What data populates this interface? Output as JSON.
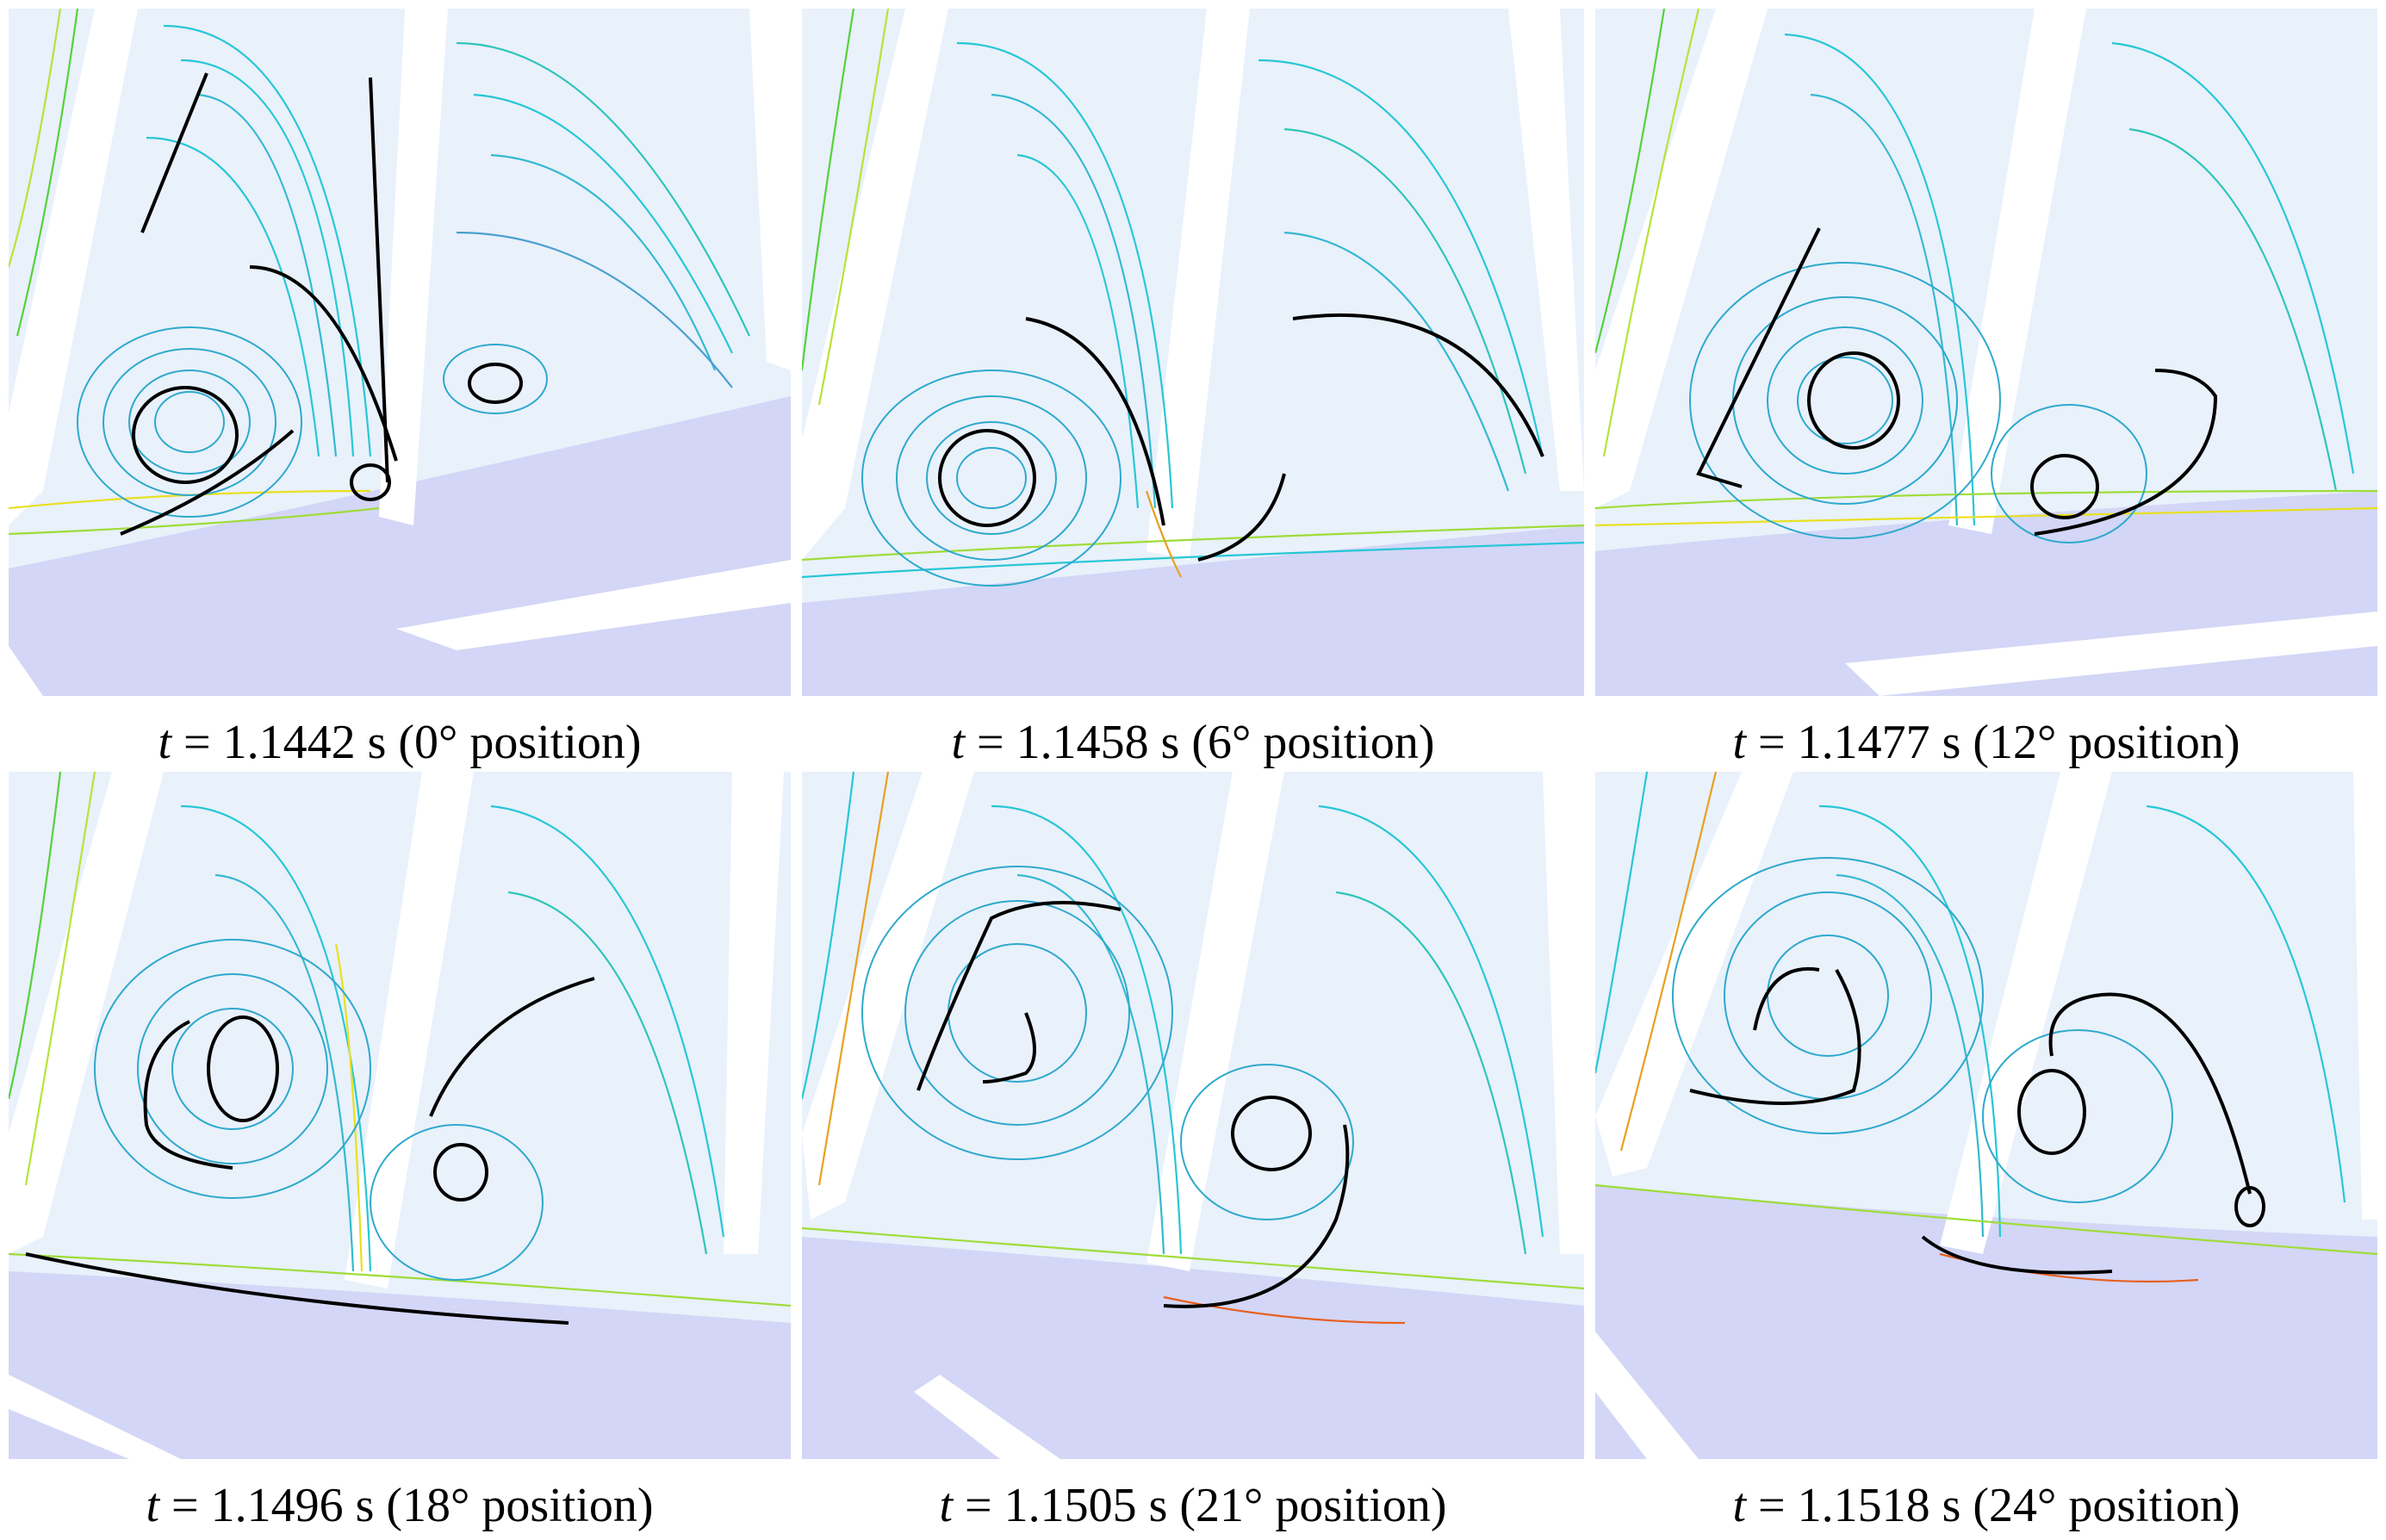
{
  "panels": [
    {
      "t": "t",
      "eq": " = 1.1442 s (0° position)"
    },
    {
      "t": "t",
      "eq": " = 1.1458 s (6° position)"
    },
    {
      "t": "t",
      "eq": " = 1.1477 s (12° position)"
    },
    {
      "t": "t",
      "eq": " = 1.1496 s (18° position)"
    },
    {
      "t": "t",
      "eq": " = 1.1505 s (21° position)"
    },
    {
      "t": "t",
      "eq": " = 1.1518 s (24° position)"
    }
  ],
  "colors": {
    "background": "#e9f1fb",
    "solid": "#d3d6f6",
    "blade": "#ffffff",
    "streamline_low": "#2f5fbf",
    "streamline_mid": "#27c7d6",
    "streamline_high": "#55d23a",
    "streamline_peak": "#e8e020",
    "arrow": "#000000"
  }
}
